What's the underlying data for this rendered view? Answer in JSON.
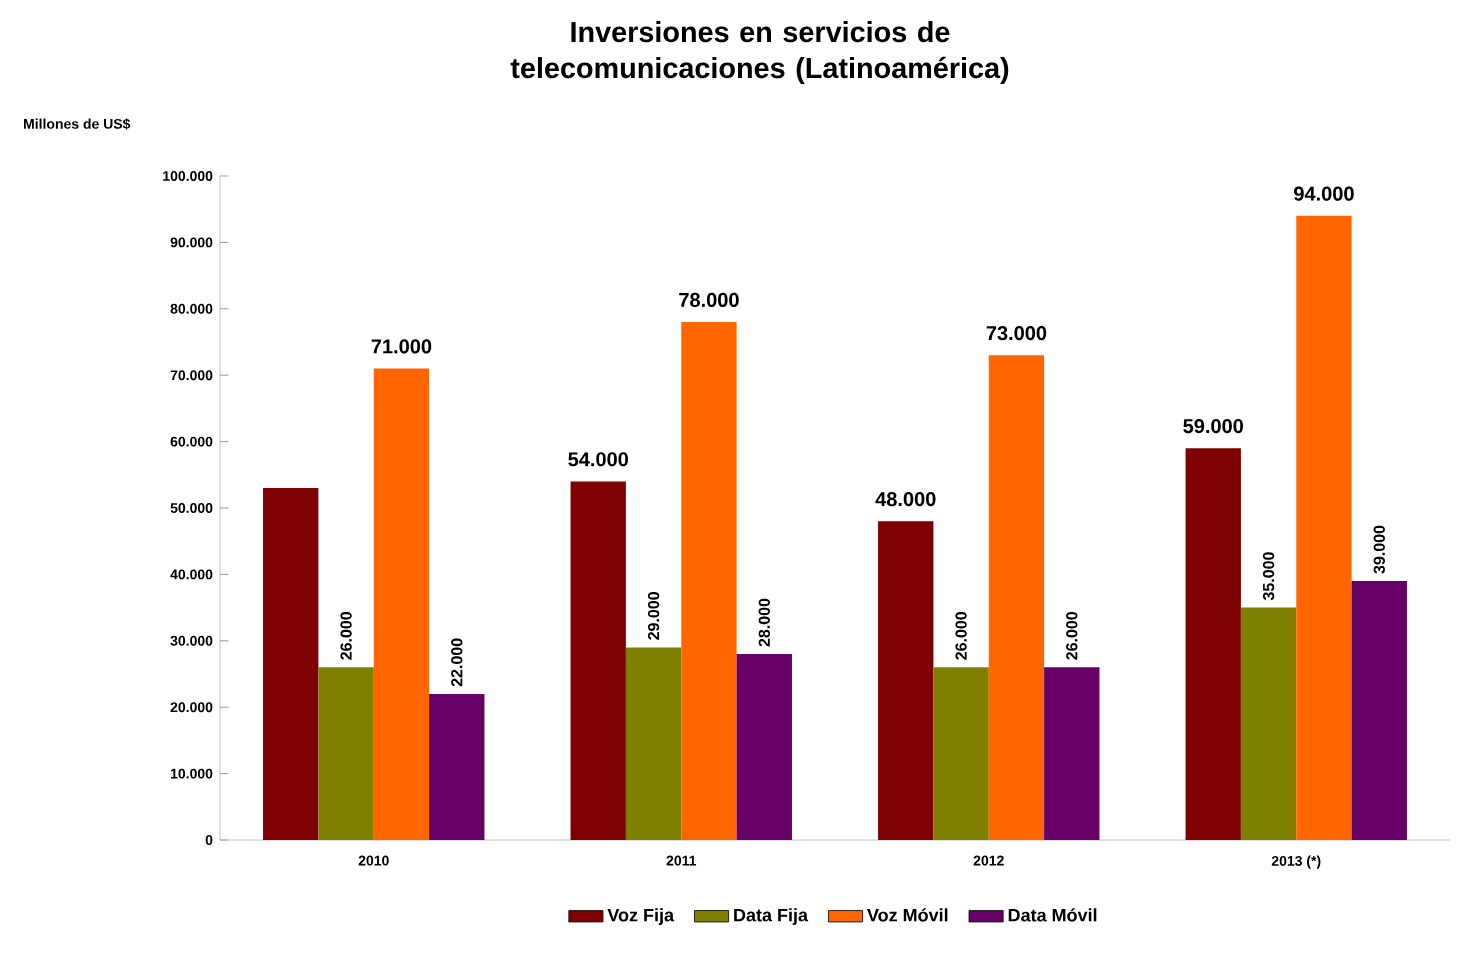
{
  "chart_data": {
    "type": "bar",
    "title": "Inversiones en servicios de telecomunicaciones (Latinoamérica)",
    "ylabel": "Millones de US$",
    "categories": [
      "2010",
      "2011",
      "2012",
      "2013 (*)"
    ],
    "series": [
      {
        "name": "Voz Fija",
        "color": "#7f0000",
        "values": [
          53000,
          54000,
          48000,
          59000
        ],
        "value_labels": [
          null,
          "54.000",
          "48.000",
          "59.000"
        ]
      },
      {
        "name": "Data Fija",
        "color": "#7f7f00",
        "values": [
          26000,
          29000,
          26000,
          35000
        ],
        "value_labels": [
          "26.000",
          "29.000",
          "26.000",
          "35.000"
        ]
      },
      {
        "name": "Voz Móvil",
        "color": "#ff6600",
        "values": [
          71000,
          78000,
          73000,
          94000
        ],
        "value_labels": [
          "71.000",
          "78.000",
          "73.000",
          "94.000"
        ]
      },
      {
        "name": "Data Móvil",
        "color": "#660066",
        "values": [
          22000,
          28000,
          26000,
          39000
        ],
        "value_labels": [
          "22.000",
          "28.000",
          "26.000",
          "39.000"
        ]
      }
    ],
    "ylim": [
      0,
      100000
    ],
    "yticks": [
      {
        "value": 0,
        "label": "0"
      },
      {
        "value": 10000,
        "label": "10.000"
      },
      {
        "value": 20000,
        "label": "20.000"
      },
      {
        "value": 30000,
        "label": "30.000"
      },
      {
        "value": 40000,
        "label": "40.000"
      },
      {
        "value": 50000,
        "label": "50.000"
      },
      {
        "value": 60000,
        "label": "60.000"
      },
      {
        "value": 70000,
        "label": "70.000"
      },
      {
        "value": 80000,
        "label": "80.000"
      },
      {
        "value": 90000,
        "label": "90.000"
      },
      {
        "value": 100000,
        "label": "100.000"
      }
    ],
    "legend": "bottom"
  }
}
